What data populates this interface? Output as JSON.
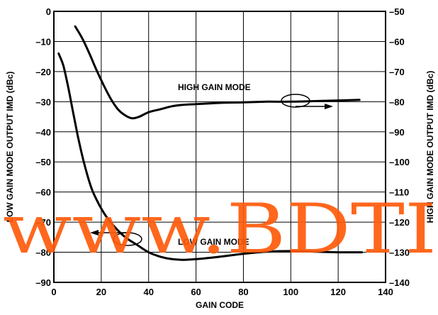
{
  "chart_data": {
    "type": "line",
    "xlabel": "GAIN CODE",
    "ylabel_left": "LOW GAIN MODE OUTPUT IMD (dBc)",
    "ylabel_right": "HIGH GAIN MODE OUTPUT IMD (dBc)",
    "xlim": [
      0,
      140
    ],
    "ylim_left": [
      -90,
      0
    ],
    "ylim_right": [
      -140,
      -50
    ],
    "xticks": [
      "0",
      "20",
      "40",
      "60",
      "80",
      "100",
      "120",
      "140"
    ],
    "yticks_left": [
      "0",
      "–10",
      "–20",
      "–30",
      "–40",
      "–50",
      "–60",
      "–70",
      "–80",
      "–90"
    ],
    "yticks_right": [
      "–50",
      "–60",
      "–70",
      "–80",
      "–90",
      "–100",
      "–110",
      "–120",
      "–130",
      "–140"
    ],
    "grid": true,
    "series": [
      {
        "name": "HIGH GAIN MODE",
        "axis": "right",
        "x": [
          9,
          12,
          15,
          18,
          21,
          24,
          27,
          30,
          33,
          36,
          40,
          45,
          50,
          55,
          60,
          70,
          80,
          90,
          100,
          110,
          120,
          129
        ],
        "y": [
          -55,
          -59,
          -64,
          -69.5,
          -74.5,
          -79,
          -82.5,
          -84.5,
          -85.5,
          -85,
          -83.5,
          -82.5,
          -81.5,
          -81,
          -80.8,
          -80.4,
          -80.2,
          -80,
          -80,
          -79.8,
          -79.6,
          -79.4
        ]
      },
      {
        "name": "LOW GAIN MODE",
        "axis": "left",
        "x": [
          2,
          4,
          6,
          8,
          10,
          12,
          14,
          16,
          18,
          20,
          22,
          25,
          28,
          31,
          35,
          40,
          45,
          50,
          55,
          60,
          70,
          80,
          90,
          100,
          110,
          120,
          130
        ],
        "y": [
          -14,
          -18,
          -25,
          -33,
          -41,
          -48,
          -54,
          -59,
          -62.5,
          -65.5,
          -68,
          -71,
          -73.5,
          -75.5,
          -77.5,
          -80,
          -81.5,
          -82.3,
          -82.5,
          -82.3,
          -81.5,
          -80.5,
          -79.8,
          -79.6,
          -79.8,
          -80,
          -80
        ]
      }
    ],
    "annotations": {
      "high_label": "HIGH GAIN MODE",
      "low_label": "LOW GAIN MODE"
    }
  },
  "watermark": "www.BDTI",
  "colors": {
    "line": "#000000",
    "watermark": "#ff5a0a"
  }
}
